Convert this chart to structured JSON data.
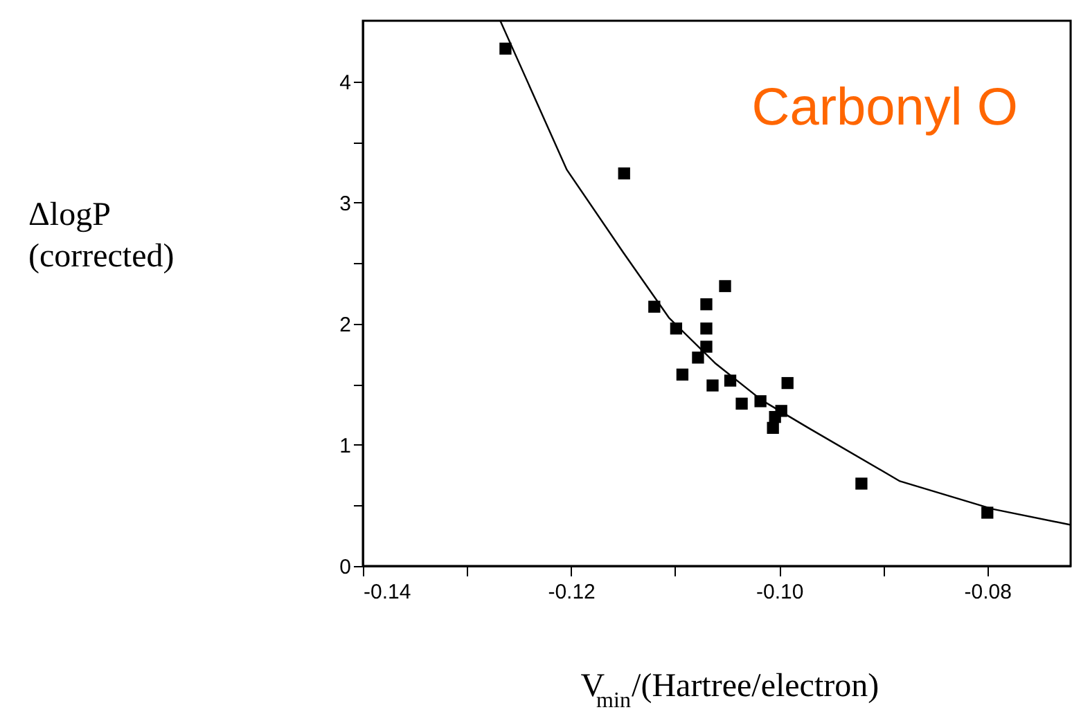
{
  "chart_data": {
    "type": "scatter",
    "xlabel": "V$_{min}$/(Hartree/electron)",
    "ylabel": "ΔlogP\n(corrected)",
    "annotations": [
      "Carbonyl O"
    ],
    "xlim": [
      -0.14,
      -0.072
    ],
    "ylim": [
      0,
      4.5
    ],
    "xticks": [
      -0.14,
      {
        "value": -0.13,
        "label": null
      },
      -0.12,
      {
        "value": -0.11,
        "label": null
      },
      {
        "value": -0.1,
        "label": "-0.10"
      },
      {
        "value": -0.09,
        "label": null
      },
      -0.08
    ],
    "yticks": [
      0,
      {
        "value": 0.5,
        "label": null
      },
      1,
      {
        "value": 1.5,
        "label": null
      },
      2,
      {
        "value": 2.5,
        "label": null
      },
      3,
      {
        "value": 3.5,
        "label": null
      },
      4
    ],
    "grid": false,
    "series": [
      {
        "marker": "square",
        "color": "#000000",
        "x": [
          -0.1263,
          -0.1149,
          -0.112,
          -0.1099,
          -0.107,
          -0.107,
          -0.107,
          -0.1078,
          -0.1052,
          -0.1093,
          -0.1064,
          -0.1047,
          -0.1036,
          -0.1018,
          -0.0992,
          -0.0998,
          -0.1004,
          -0.1006,
          -0.0921,
          -0.08
        ],
        "values": [
          4.27,
          3.24,
          2.14,
          1.96,
          2.16,
          1.96,
          1.81,
          1.72,
          2.31,
          1.58,
          1.49,
          1.53,
          1.34,
          1.36,
          1.51,
          1.28,
          1.23,
          1.14,
          0.68,
          0.44
        ]
      },
      {
        "type": "line",
        "color": "#000000",
        "x": [
          -0.1268,
          -0.1204,
          -0.115,
          -0.1106,
          -0.1061,
          -0.1017,
          -0.0972,
          -0.0884,
          -0.0795,
          -0.072
        ],
        "values": [
          4.5,
          3.27,
          2.59,
          2.05,
          1.67,
          1.37,
          1.14,
          0.7,
          0.47,
          0.34
        ]
      }
    ]
  }
}
